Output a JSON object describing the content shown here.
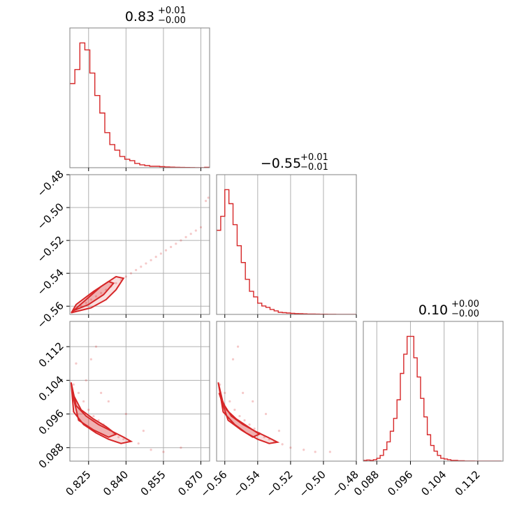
{
  "chart_data": [
    {
      "type": "histogram",
      "panel": "row1-col1",
      "title": {
        "value": "0.83",
        "plus": "+0.01",
        "minus": "−0.00"
      },
      "xlim": [
        0.8175,
        0.8735
      ],
      "x_ticks": [
        "0.825",
        "0.840",
        "0.855",
        "0.870"
      ],
      "grid": true,
      "bins": [
        0.8175,
        0.8195,
        0.8215,
        0.8235,
        0.8255,
        0.8275,
        0.8295,
        0.8315,
        0.8335,
        0.8355,
        0.8375,
        0.8395,
        0.8415,
        0.8435,
        0.8455,
        0.8475,
        0.8495,
        0.8515,
        0.8535,
        0.8555,
        0.8575,
        0.8595,
        0.8615,
        0.8635,
        0.8655,
        0.8675,
        0.8695,
        0.8715,
        0.8735
      ],
      "counts": [
        120,
        140,
        178,
        168,
        135,
        103,
        78,
        50,
        33,
        25,
        16,
        12,
        10,
        6,
        4,
        3,
        2,
        2,
        1.5,
        1,
        0.8,
        0.6,
        0.4,
        0.3,
        0.2,
        0.1,
        0.1,
        0.5
      ]
    },
    {
      "type": "scatter-contour",
      "panel": "row2-col1",
      "xlim": [
        0.8175,
        0.8735
      ],
      "ylim": [
        -0.565,
        -0.48
      ],
      "y_ticks": [
        "−0.48",
        "−0.50",
        "−0.52",
        "−0.54",
        "−0.56"
      ],
      "grid": true,
      "points": [
        [
          0.82,
          -0.562
        ],
        [
          0.822,
          -0.56
        ],
        [
          0.824,
          -0.558
        ],
        [
          0.826,
          -0.556
        ],
        [
          0.828,
          -0.554
        ],
        [
          0.83,
          -0.552
        ],
        [
          0.832,
          -0.55
        ],
        [
          0.834,
          -0.548
        ],
        [
          0.836,
          -0.546
        ],
        [
          0.838,
          -0.544
        ],
        [
          0.84,
          -0.542
        ],
        [
          0.842,
          -0.54
        ],
        [
          0.844,
          -0.538
        ],
        [
          0.846,
          -0.536
        ],
        [
          0.848,
          -0.534
        ],
        [
          0.85,
          -0.532
        ],
        [
          0.852,
          -0.53
        ],
        [
          0.854,
          -0.528
        ],
        [
          0.856,
          -0.526
        ],
        [
          0.858,
          -0.524
        ],
        [
          0.86,
          -0.522
        ],
        [
          0.862,
          -0.52
        ],
        [
          0.864,
          -0.518
        ],
        [
          0.866,
          -0.516
        ],
        [
          0.868,
          -0.514
        ],
        [
          0.87,
          -0.512
        ],
        [
          0.872,
          -0.496
        ],
        [
          0.873,
          -0.494
        ]
      ],
      "contours": [
        {
          "level": "outer",
          "x": [
            0.818,
            0.826,
            0.832,
            0.836,
            0.839,
            0.836,
            0.83,
            0.824,
            0.818
          ],
          "y": [
            -0.564,
            -0.561,
            -0.556,
            -0.55,
            -0.543,
            -0.542,
            -0.548,
            -0.556,
            -0.564
          ]
        },
        {
          "level": "inner",
          "x": [
            0.8185,
            0.825,
            0.831,
            0.835,
            0.833,
            0.827,
            0.82,
            0.8185
          ],
          "y": [
            -0.563,
            -0.559,
            -0.553,
            -0.546,
            -0.545,
            -0.551,
            -0.559,
            -0.563
          ]
        }
      ]
    },
    {
      "type": "histogram",
      "panel": "row2-col2",
      "title": {
        "value": "−0.55",
        "plus": "+0.01",
        "minus": "−0.01"
      },
      "xlim": [
        -0.565,
        -0.48
      ],
      "grid": true,
      "bins": [
        -0.565,
        -0.5625,
        -0.56,
        -0.5575,
        -0.555,
        -0.5525,
        -0.55,
        -0.5475,
        -0.545,
        -0.5425,
        -0.54,
        -0.5375,
        -0.535,
        -0.5325,
        -0.53,
        -0.5275,
        -0.525,
        -0.5225,
        -0.52,
        -0.5175,
        -0.515,
        -0.5125,
        -0.51,
        -0.5075,
        -0.505,
        -0.5025,
        -0.5,
        -0.4975,
        -0.495,
        -0.4925,
        -0.49,
        -0.4875,
        -0.485,
        -0.4825,
        -0.48
      ],
      "counts": [
        120,
        140,
        178,
        158,
        128,
        98,
        74,
        50,
        33,
        25,
        16,
        12,
        10,
        7,
        5,
        3,
        2.5,
        2,
        1.5,
        1.2,
        1,
        0.8,
        0.6,
        0.5,
        0.4,
        0.3,
        0.3,
        0.2,
        0.2,
        0.1,
        0.1,
        0.1,
        0.1,
        0.1
      ]
    },
    {
      "type": "scatter-contour",
      "panel": "row3-col1",
      "xlim": [
        0.8175,
        0.8735
      ],
      "ylim": [
        0.0848,
        0.118
      ],
      "y_ticks": [
        "0.112",
        "0.104",
        "0.096",
        "0.088"
      ],
      "grid": true,
      "points": [
        [
          0.819,
          0.103
        ],
        [
          0.821,
          0.101
        ],
        [
          0.823,
          0.099
        ],
        [
          0.825,
          0.097
        ],
        [
          0.827,
          0.0955
        ],
        [
          0.829,
          0.0945
        ],
        [
          0.831,
          0.0935
        ],
        [
          0.833,
          0.0925
        ],
        [
          0.835,
          0.0915
        ],
        [
          0.837,
          0.0905
        ],
        [
          0.839,
          0.09
        ],
        [
          0.841,
          0.0895
        ],
        [
          0.845,
          0.089
        ],
        [
          0.85,
          0.0875
        ],
        [
          0.855,
          0.087
        ],
        [
          0.862,
          0.088
        ],
        [
          0.826,
          0.109
        ],
        [
          0.828,
          0.112
        ],
        [
          0.83,
          0.101
        ],
        [
          0.833,
          0.099
        ],
        [
          0.84,
          0.096
        ],
        [
          0.847,
          0.092
        ],
        [
          0.82,
          0.108
        ],
        [
          0.824,
          0.104
        ]
      ],
      "contours": [
        {
          "level": "outer",
          "x": [
            0.818,
            0.82,
            0.824,
            0.829,
            0.834,
            0.839,
            0.842,
            0.838,
            0.833,
            0.828,
            0.823,
            0.819,
            0.818
          ],
          "y": [
            0.1035,
            0.098,
            0.0955,
            0.0935,
            0.092,
            0.0905,
            0.0895,
            0.089,
            0.09,
            0.0915,
            0.0935,
            0.0965,
            0.1035
          ]
        },
        {
          "level": "inner",
          "x": [
            0.8185,
            0.822,
            0.827,
            0.832,
            0.836,
            0.833,
            0.827,
            0.821,
            0.8185
          ],
          "y": [
            0.101,
            0.097,
            0.0948,
            0.093,
            0.0912,
            0.0905,
            0.0922,
            0.0945,
            0.101
          ]
        }
      ]
    },
    {
      "type": "scatter-contour",
      "panel": "row3-col2",
      "xlim": [
        -0.565,
        -0.48
      ],
      "ylim": [
        0.0848,
        0.118
      ],
      "grid": true,
      "points": [
        [
          -0.563,
          0.103
        ],
        [
          -0.56,
          0.101
        ],
        [
          -0.557,
          0.099
        ],
        [
          -0.554,
          0.097
        ],
        [
          -0.551,
          0.0955
        ],
        [
          -0.548,
          0.0945
        ],
        [
          -0.545,
          0.0935
        ],
        [
          -0.542,
          0.0925
        ],
        [
          -0.539,
          0.0915
        ],
        [
          -0.536,
          0.0905
        ],
        [
          -0.533,
          0.09
        ],
        [
          -0.53,
          0.0895
        ],
        [
          -0.525,
          0.0888
        ],
        [
          -0.52,
          0.088
        ],
        [
          -0.512,
          0.0875
        ],
        [
          -0.505,
          0.087
        ],
        [
          -0.496,
          0.087
        ],
        [
          -0.555,
          0.109
        ],
        [
          -0.552,
          0.112
        ],
        [
          -0.549,
          0.101
        ],
        [
          -0.543,
          0.099
        ],
        [
          -0.535,
          0.096
        ],
        [
          -0.527,
          0.092
        ]
      ],
      "contours": [
        {
          "level": "outer",
          "x": [
            -0.564,
            -0.561,
            -0.556,
            -0.549,
            -0.542,
            -0.534,
            -0.528,
            -0.533,
            -0.54,
            -0.547,
            -0.554,
            -0.561,
            -0.564
          ],
          "y": [
            0.1035,
            0.0985,
            0.0955,
            0.0935,
            0.092,
            0.0905,
            0.0893,
            0.089,
            0.09,
            0.0915,
            0.0935,
            0.0965,
            0.1035
          ]
        },
        {
          "level": "inner",
          "x": [
            -0.5635,
            -0.559,
            -0.553,
            -0.546,
            -0.539,
            -0.543,
            -0.55,
            -0.558,
            -0.5635
          ],
          "y": [
            0.101,
            0.097,
            0.0948,
            0.093,
            0.0912,
            0.0905,
            0.0922,
            0.0945,
            0.101
          ]
        }
      ]
    },
    {
      "type": "histogram",
      "panel": "row3-col3",
      "title": {
        "value": "0.10",
        "plus": "+0.00",
        "minus": "−0.00"
      },
      "xlim": [
        0.0848,
        0.118
      ],
      "grid": true,
      "bins": [
        0.0848,
        0.0856,
        0.0864,
        0.0872,
        0.088,
        0.0888,
        0.0896,
        0.0904,
        0.0912,
        0.092,
        0.0928,
        0.0936,
        0.0944,
        0.0952,
        0.096,
        0.0968,
        0.0976,
        0.0984,
        0.0992,
        0.1,
        0.1008,
        0.1016,
        0.1024,
        0.1032,
        0.104,
        0.1048,
        0.1056,
        0.1064,
        0.1072,
        0.108,
        0.1088,
        0.1096,
        0.1104,
        0.1112,
        0.112,
        0.1128,
        0.1136,
        0.1144,
        0.1152,
        0.116,
        0.1168,
        0.1176
      ],
      "counts": [
        1,
        1.5,
        1,
        2,
        4,
        8,
        16,
        27,
        42,
        60,
        86,
        123,
        150,
        175,
        175,
        145,
        118,
        88,
        62,
        37,
        22,
        14,
        8,
        4,
        3,
        2,
        1,
        1,
        0.5,
        0.5,
        0.2,
        0.2,
        0.2,
        0.1,
        0.1,
        0.1,
        0.1,
        0.1,
        0.1,
        0.1,
        0.1
      ]
    }
  ],
  "x_tick_labels": {
    "col1": [
      "0.825",
      "0.840",
      "0.855",
      "0.870"
    ],
    "col2": [
      "−0.56",
      "−0.54",
      "−0.52",
      "−0.50",
      "−0.48"
    ],
    "col3": [
      "0.088",
      "0.096",
      "0.104",
      "0.112"
    ]
  },
  "colors": {
    "series": "#d62728",
    "grid": "#b0b0b0",
    "frame": "#808080"
  }
}
